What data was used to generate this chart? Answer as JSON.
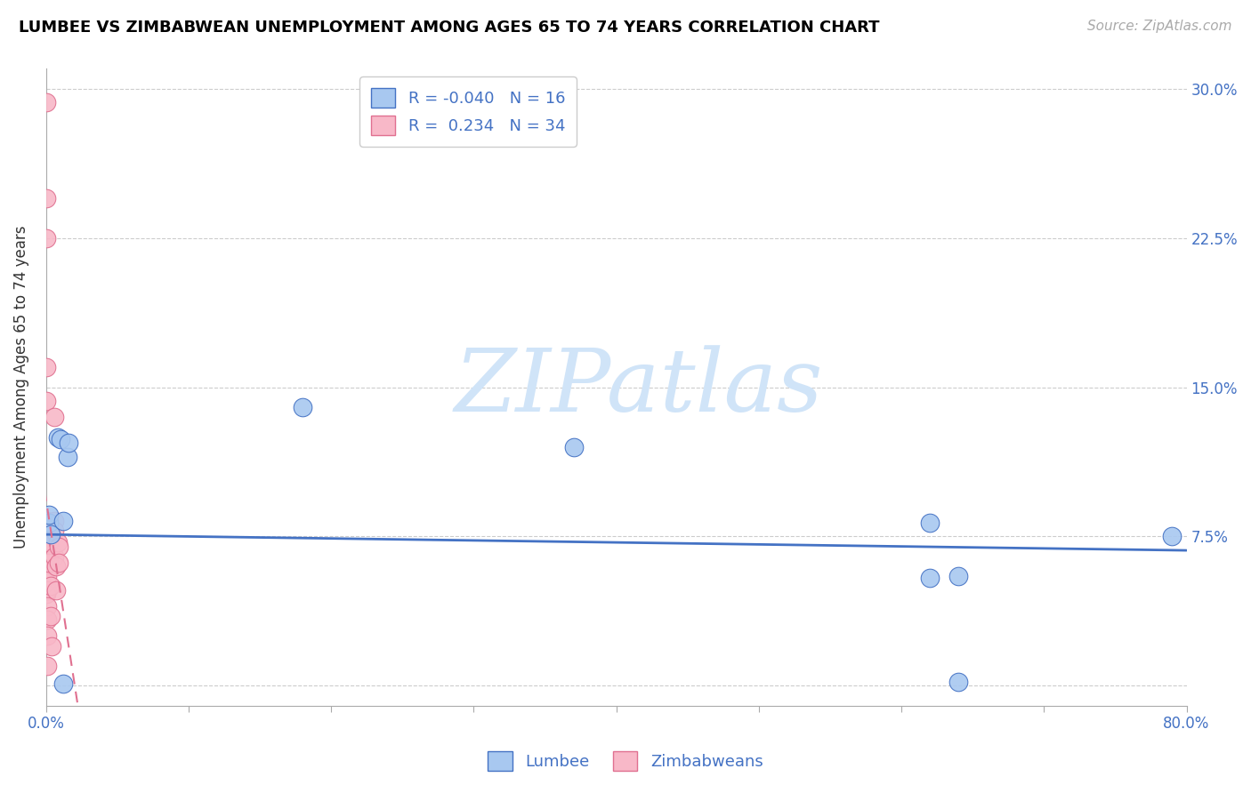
{
  "title": "LUMBEE VS ZIMBABWEAN UNEMPLOYMENT AMONG AGES 65 TO 74 YEARS CORRELATION CHART",
  "source": "Source: ZipAtlas.com",
  "ylabel": "Unemployment Among Ages 65 to 74 years",
  "xlim": [
    0.0,
    0.8
  ],
  "ylim": [
    -0.01,
    0.31
  ],
  "xtick_positions": [
    0.0,
    0.1,
    0.2,
    0.3,
    0.4,
    0.5,
    0.6,
    0.7,
    0.8
  ],
  "xtick_labels_show": [
    "0.0%",
    "",
    "",
    "",
    "",
    "",
    "",
    "",
    "80.0%"
  ],
  "ytick_positions": [
    0.0,
    0.075,
    0.15,
    0.225,
    0.3
  ],
  "ytick_labels_right": [
    "",
    "7.5%",
    "15.0%",
    "22.5%",
    "30.0%"
  ],
  "lumbee_R": -0.04,
  "lumbee_N": 16,
  "zimbabwean_R": 0.234,
  "zimbabwean_N": 34,
  "lumbee_color": "#a8c8f0",
  "zimbabwean_color": "#f8b8c8",
  "lumbee_edge_color": "#4472c4",
  "zimbabwean_edge_color": "#e07090",
  "lumbee_line_color": "#4472c4",
  "zimbabwean_line_color": "#e07090",
  "tick_label_color": "#4472c4",
  "watermark_color": "#d0e4f8",
  "lumbee_x": [
    0.002,
    0.002,
    0.003,
    0.008,
    0.01,
    0.012,
    0.012,
    0.015,
    0.016,
    0.18,
    0.37,
    0.79,
    0.62,
    0.62,
    0.64,
    0.64
  ],
  "lumbee_y": [
    0.082,
    0.086,
    0.076,
    0.125,
    0.124,
    0.083,
    0.001,
    0.115,
    0.122,
    0.14,
    0.12,
    0.075,
    0.082,
    0.054,
    0.055,
    0.002
  ],
  "zimbabwean_x": [
    0.0,
    0.0,
    0.0,
    0.0,
    0.0,
    0.0,
    0.0,
    0.0,
    0.0,
    0.0,
    0.0,
    0.0,
    0.001,
    0.001,
    0.001,
    0.001,
    0.001,
    0.001,
    0.001,
    0.001,
    0.002,
    0.002,
    0.003,
    0.003,
    0.004,
    0.006,
    0.006,
    0.006,
    0.006,
    0.007,
    0.007,
    0.008,
    0.009,
    0.009
  ],
  "zimbabwean_y": [
    0.293,
    0.245,
    0.225,
    0.16,
    0.143,
    0.083,
    0.078,
    0.073,
    0.065,
    0.058,
    0.052,
    0.046,
    0.073,
    0.062,
    0.055,
    0.048,
    0.04,
    0.033,
    0.025,
    0.01,
    0.072,
    0.062,
    0.05,
    0.035,
    0.02,
    0.135,
    0.083,
    0.078,
    0.065,
    0.06,
    0.048,
    0.072,
    0.07,
    0.062
  ],
  "zimb_trendline_x": [
    -0.005,
    0.2
  ],
  "lumbee_trendline_x": [
    0.0,
    0.8
  ],
  "lumbee_trendline_y": [
    0.076,
    0.068
  ]
}
